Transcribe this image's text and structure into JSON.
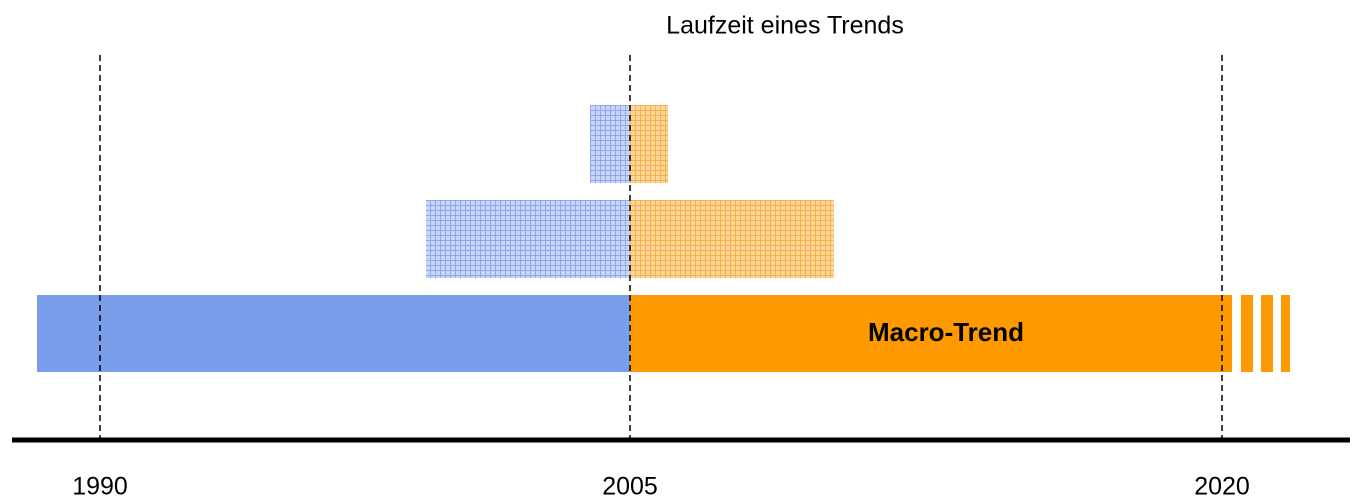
{
  "title": "Laufzeit eines Trends",
  "axis": {
    "labels": [
      "1990",
      "2005",
      "2020"
    ]
  },
  "macro_trend": {
    "label": "Macro-Trend"
  }
}
